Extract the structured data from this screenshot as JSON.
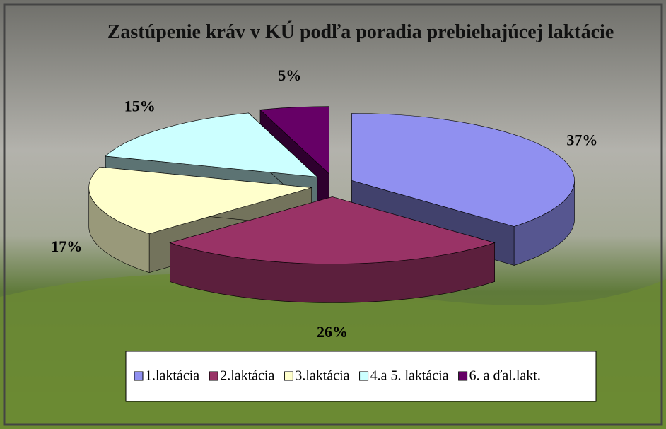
{
  "chart_data": {
    "type": "pie3d",
    "title": "Zastúpenie kráv v KÚ podľa poradia prebiehajúcej laktácie",
    "categories": [
      "1.laktácia",
      "2.laktácia",
      "3.laktácia",
      "4.a 5. laktácia",
      "6. a ďal.lakt."
    ],
    "values": [
      37,
      26,
      17,
      15,
      5
    ],
    "value_labels": [
      "37%",
      "26%",
      "17%",
      "15%",
      "5%"
    ],
    "colors": [
      "#9090f0",
      "#993366",
      "#ffffcc",
      "#ccffff",
      "#660066"
    ],
    "legend": "bottom"
  }
}
